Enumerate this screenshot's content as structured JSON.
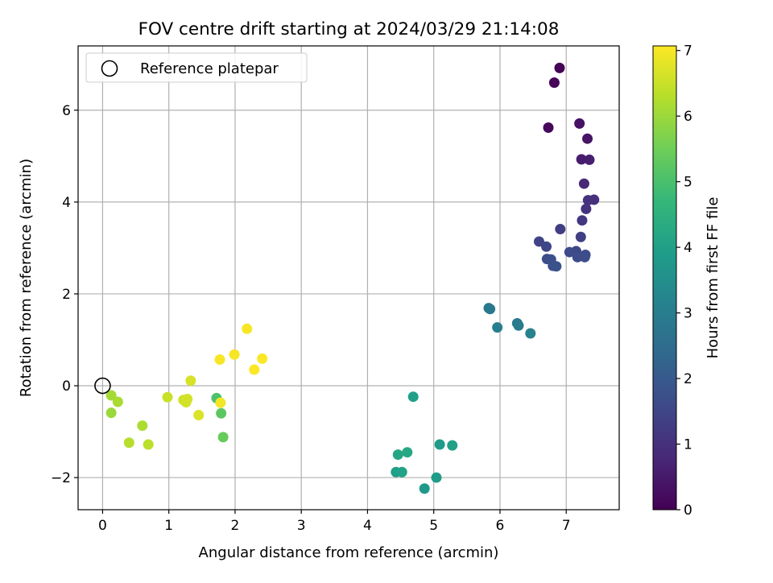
{
  "chart_data": {
    "type": "scatter",
    "title": "FOV centre drift starting at 2024/03/29 21:14:08",
    "xlabel": "Angular distance from reference (arcmin)",
    "ylabel": "Rotation from reference (arcmin)",
    "xlim": [
      -0.37,
      7.8
    ],
    "ylim": [
      -2.7,
      7.4
    ],
    "x_ticks": [
      0,
      1,
      2,
      3,
      4,
      5,
      6,
      7
    ],
    "x_tick_labels": [
      "0",
      "1",
      "2",
      "3",
      "4",
      "5",
      "6",
      "7"
    ],
    "y_ticks": [
      -2,
      0,
      2,
      4,
      6
    ],
    "y_tick_labels": [
      "−2",
      "0",
      "2",
      "4",
      "6"
    ],
    "grid": true,
    "legend": {
      "position": "top-left",
      "entries": [
        {
          "label": "Reference platepar",
          "marker": "open-circle",
          "color": "#000000"
        }
      ]
    },
    "reference_point": {
      "x": 0,
      "y": 0
    },
    "colorbar": {
      "label": "Hours from first FF file",
      "range": [
        0,
        7.07
      ],
      "ticks": [
        0,
        1,
        2,
        3,
        4,
        5,
        6,
        7
      ],
      "tick_labels": [
        "0",
        "1",
        "2",
        "3",
        "4",
        "5",
        "6",
        "7"
      ],
      "colormap": "viridis",
      "colors": [
        "#440154",
        "#482878",
        "#3e4989",
        "#31688e",
        "#26828e",
        "#1f9e89",
        "#35b779",
        "#6ece58",
        "#b5de2b",
        "#fde725"
      ]
    },
    "series": [
      {
        "marker": "filled-circle",
        "color_by": "hours",
        "points": [
          {
            "x": 6.9,
            "y": 6.92,
            "hours": 0.05
          },
          {
            "x": 6.82,
            "y": 6.6,
            "hours": 0.1
          },
          {
            "x": 6.73,
            "y": 5.62,
            "hours": 0.15
          },
          {
            "x": 7.2,
            "y": 5.71,
            "hours": 0.35
          },
          {
            "x": 7.32,
            "y": 5.38,
            "hours": 0.4
          },
          {
            "x": 7.23,
            "y": 4.93,
            "hours": 0.55
          },
          {
            "x": 7.35,
            "y": 4.92,
            "hours": 0.6
          },
          {
            "x": 7.27,
            "y": 4.4,
            "hours": 0.8
          },
          {
            "x": 7.42,
            "y": 4.05,
            "hours": 0.95
          },
          {
            "x": 7.33,
            "y": 4.04,
            "hours": 1.0
          },
          {
            "x": 7.3,
            "y": 3.85,
            "hours": 1.05
          },
          {
            "x": 7.24,
            "y": 3.6,
            "hours": 1.15
          },
          {
            "x": 6.91,
            "y": 3.41,
            "hours": 1.3
          },
          {
            "x": 7.22,
            "y": 3.24,
            "hours": 1.35
          },
          {
            "x": 6.59,
            "y": 3.14,
            "hours": 1.45
          },
          {
            "x": 6.7,
            "y": 3.03,
            "hours": 1.5
          },
          {
            "x": 7.15,
            "y": 2.93,
            "hours": 1.55
          },
          {
            "x": 7.05,
            "y": 2.91,
            "hours": 1.6
          },
          {
            "x": 7.29,
            "y": 2.85,
            "hours": 1.62
          },
          {
            "x": 7.17,
            "y": 2.8,
            "hours": 1.65
          },
          {
            "x": 7.28,
            "y": 2.8,
            "hours": 1.67
          },
          {
            "x": 6.71,
            "y": 2.76,
            "hours": 1.7
          },
          {
            "x": 6.77,
            "y": 2.75,
            "hours": 1.72
          },
          {
            "x": 6.8,
            "y": 2.61,
            "hours": 1.78
          },
          {
            "x": 6.85,
            "y": 2.6,
            "hours": 1.8
          },
          {
            "x": 5.83,
            "y": 1.69,
            "hours": 2.8
          },
          {
            "x": 5.85,
            "y": 1.67,
            "hours": 2.85
          },
          {
            "x": 6.26,
            "y": 1.36,
            "hours": 2.9
          },
          {
            "x": 6.28,
            "y": 1.31,
            "hours": 2.95
          },
          {
            "x": 5.96,
            "y": 1.27,
            "hours": 3.05
          },
          {
            "x": 6.46,
            "y": 1.14,
            "hours": 3.15
          },
          {
            "x": 4.69,
            "y": -0.24,
            "hours": 4.0
          },
          {
            "x": 5.09,
            "y": -1.28,
            "hours": 3.85
          },
          {
            "x": 5.28,
            "y": -1.3,
            "hours": 4.0
          },
          {
            "x": 4.6,
            "y": -1.45,
            "hours": 4.2
          },
          {
            "x": 4.46,
            "y": -1.5,
            "hours": 4.15
          },
          {
            "x": 4.43,
            "y": -1.88,
            "hours": 3.95
          },
          {
            "x": 4.52,
            "y": -1.88,
            "hours": 4.05
          },
          {
            "x": 5.04,
            "y": -2.0,
            "hours": 3.9
          },
          {
            "x": 4.86,
            "y": -2.24,
            "hours": 3.8
          },
          {
            "x": 1.72,
            "y": -0.27,
            "hours": 5.05
          },
          {
            "x": 1.79,
            "y": -0.6,
            "hours": 5.25
          },
          {
            "x": 1.82,
            "y": -1.12,
            "hours": 5.4
          },
          {
            "x": 0.13,
            "y": -0.21,
            "hours": 6.1
          },
          {
            "x": 0.23,
            "y": -0.35,
            "hours": 6.15
          },
          {
            "x": 0.13,
            "y": -0.59,
            "hours": 6.0
          },
          {
            "x": 0.6,
            "y": -0.87,
            "hours": 6.2
          },
          {
            "x": 0.4,
            "y": -1.24,
            "hours": 6.3
          },
          {
            "x": 0.69,
            "y": -1.28,
            "hours": 6.35
          },
          {
            "x": 0.98,
            "y": -0.25,
            "hours": 6.5
          },
          {
            "x": 1.22,
            "y": -0.31,
            "hours": 6.55
          },
          {
            "x": 1.28,
            "y": -0.29,
            "hours": 6.6
          },
          {
            "x": 1.26,
            "y": -0.36,
            "hours": 6.6
          },
          {
            "x": 1.33,
            "y": 0.11,
            "hours": 6.65
          },
          {
            "x": 1.45,
            "y": -0.64,
            "hours": 6.7
          },
          {
            "x": 1.78,
            "y": -0.37,
            "hours": 6.95
          },
          {
            "x": 1.77,
            "y": 0.57,
            "hours": 7.0
          },
          {
            "x": 1.99,
            "y": 0.68,
            "hours": 7.0
          },
          {
            "x": 2.18,
            "y": 1.24,
            "hours": 7.02
          },
          {
            "x": 2.29,
            "y": 0.35,
            "hours": 7.05
          },
          {
            "x": 2.41,
            "y": 0.59,
            "hours": 7.05
          }
        ]
      }
    ]
  }
}
